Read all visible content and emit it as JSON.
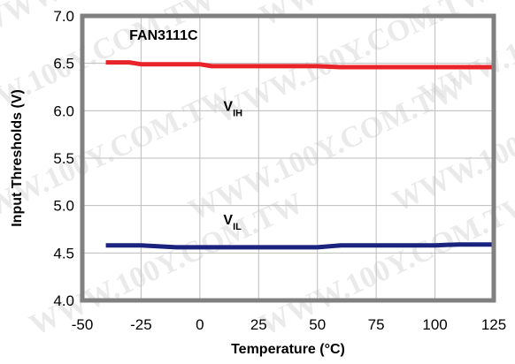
{
  "watermark": "WWW.100Y.COM.TW",
  "chart_data": {
    "type": "line",
    "title": "",
    "xlabel": "Temperature (°C)",
    "ylabel": "Input Thresholds (V)",
    "xlim": [
      -50,
      125
    ],
    "ylim": [
      4.0,
      7.0
    ],
    "x_ticks": [
      "-50",
      "-25",
      "0",
      "25",
      "50",
      "75",
      "100",
      "125"
    ],
    "y_ticks": [
      "4.0",
      "4.5",
      "5.0",
      "5.5",
      "6.0",
      "6.5",
      "7.0"
    ],
    "x_tick_values": [
      -50,
      -25,
      0,
      25,
      50,
      75,
      100,
      125
    ],
    "y_tick_values": [
      4.0,
      4.5,
      5.0,
      5.5,
      6.0,
      6.5,
      7.0
    ],
    "grid": true,
    "legend": "none",
    "series": [
      {
        "name": "",
        "color": "#e8242a",
        "x": [
          -40,
          -30,
          -25,
          0,
          5,
          25,
          50,
          60,
          75,
          100,
          125
        ],
        "y": [
          6.51,
          6.51,
          6.49,
          6.49,
          6.47,
          6.47,
          6.47,
          6.46,
          6.46,
          6.46,
          6.46
        ]
      },
      {
        "name": "",
        "color": "#1a237e",
        "x": [
          -40,
          -25,
          -10,
          0,
          25,
          50,
          60,
          75,
          100,
          110,
          125
        ],
        "y": [
          4.58,
          4.58,
          4.56,
          4.56,
          4.56,
          4.56,
          4.58,
          4.58,
          4.58,
          4.59,
          4.59
        ]
      }
    ],
    "annotations": [
      {
        "main": "FAN3111C",
        "sub": "",
        "x": -30,
        "y": 6.75
      },
      {
        "main": "V",
        "sub": "IH",
        "x": 10,
        "y": 6.0
      },
      {
        "main": "V",
        "sub": "IL",
        "x": 10,
        "y": 4.8
      }
    ]
  }
}
